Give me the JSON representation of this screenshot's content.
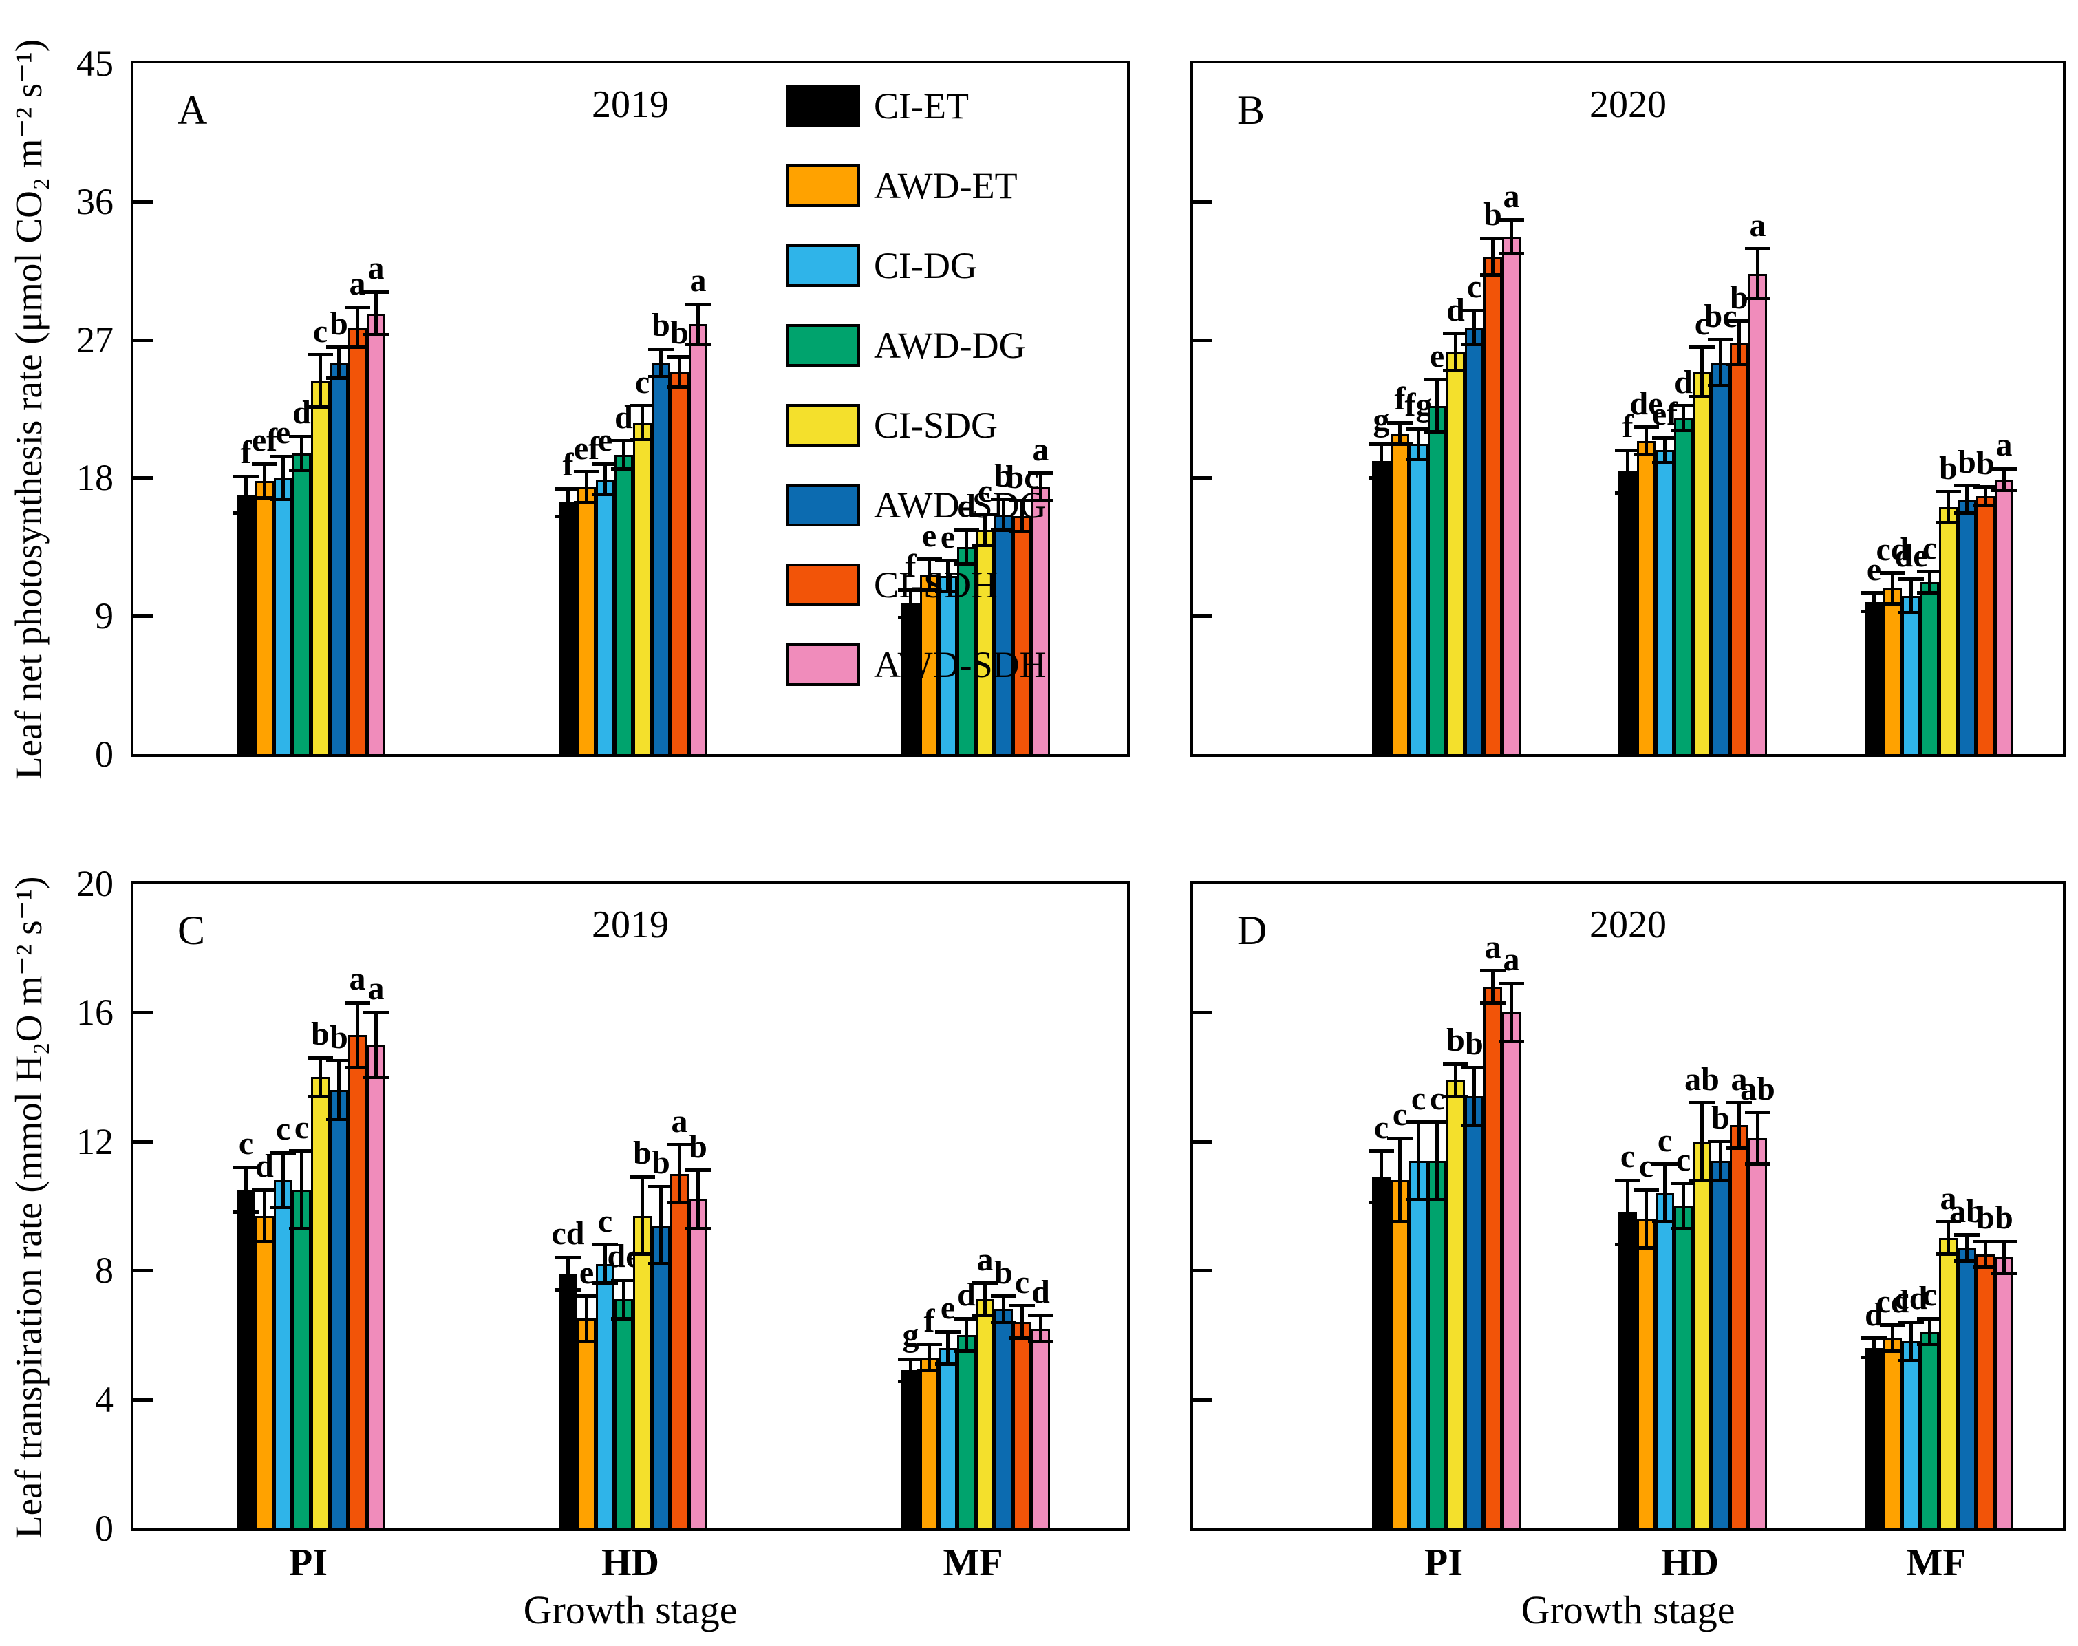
{
  "figure": {
    "xlabel": "Growth stage",
    "group_labels": [
      "PI",
      "HD",
      "MF"
    ],
    "treatments": [
      {
        "name": "CI-ET",
        "color": "#000000"
      },
      {
        "name": "AWD-ET",
        "color": "#FFA200"
      },
      {
        "name": "CI-DG",
        "color": "#2FB4E9"
      },
      {
        "name": "AWD-DG",
        "color": "#00A36D"
      },
      {
        "name": "CI-SDG",
        "color": "#F4E02C"
      },
      {
        "name": "AWD-SDG",
        "color": "#0C6BB0"
      },
      {
        "name": "CI-SDH",
        "color": "#F25408"
      },
      {
        "name": "AWD-SDH",
        "color": "#F08CBB"
      }
    ],
    "chart_data": {
      "type": "bar",
      "note": "4 panels; grouped bars with error bars and significance letters",
      "panels": [
        {
          "id": "A",
          "title": "2019",
          "ylabel": "Leaf net photosynthesis rate (μmol CO₂ m⁻² s⁻¹)",
          "ylim": [
            0,
            45
          ],
          "yticks": [
            0,
            9,
            18,
            27,
            36,
            45
          ],
          "categories": [
            "PI",
            "HD",
            "MF"
          ],
          "series": [
            {
              "name": "CI-ET",
              "values": [
                16.9,
                16.4,
                9.8
              ],
              "errors": [
                1.2,
                0.9,
                0.9
              ],
              "letters": [
                "f",
                "f",
                "f"
              ]
            },
            {
              "name": "AWD-ET",
              "values": [
                17.8,
                17.4,
                11.7
              ],
              "errors": [
                1.1,
                1.0,
                1.0
              ],
              "letters": [
                "ef",
                "ef",
                "e"
              ]
            },
            {
              "name": "CI-DG",
              "values": [
                18.0,
                17.9,
                11.6
              ],
              "errors": [
                1.4,
                1.0,
                1.0
              ],
              "letters": [
                "e",
                "e",
                "e"
              ]
            },
            {
              "name": "AWD-DG",
              "values": [
                19.6,
                19.5,
                13.5
              ],
              "errors": [
                1.1,
                0.9,
                1.1
              ],
              "letters": [
                "d",
                "d",
                "d"
              ]
            },
            {
              "name": "CI-SDG",
              "values": [
                24.3,
                21.6,
                14.6
              ],
              "errors": [
                1.7,
                1.1,
                1.0
              ],
              "letters": [
                "c",
                "c",
                "c"
              ]
            },
            {
              "name": "AWD-SDG",
              "values": [
                25.5,
                25.5,
                15.6
              ],
              "errors": [
                1.0,
                0.9,
                1.0
              ],
              "letters": [
                "b",
                "b",
                "b"
              ]
            },
            {
              "name": "CI-SDH",
              "values": [
                27.8,
                24.9,
                15.5
              ],
              "errors": [
                1.3,
                1.0,
                1.0
              ],
              "letters": [
                "a",
                "b",
                "bc"
              ]
            },
            {
              "name": "AWD-SDH",
              "values": [
                28.7,
                28.0,
                17.4
              ],
              "errors": [
                1.4,
                1.3,
                0.9
              ],
              "letters": [
                "a",
                "a",
                "a"
              ]
            }
          ]
        },
        {
          "id": "B",
          "title": "2020",
          "ylabel": "",
          "ylim": [
            0,
            45
          ],
          "yticks": [
            0,
            9,
            18,
            27,
            36,
            45
          ],
          "categories": [
            "PI",
            "HD",
            "MF"
          ],
          "series": [
            {
              "name": "CI-ET",
              "values": [
                19.1,
                18.4,
                9.9
              ],
              "errors": [
                1.1,
                1.4,
                0.6
              ],
              "letters": [
                "g",
                "f",
                "e"
              ]
            },
            {
              "name": "AWD-ET",
              "values": [
                20.9,
                20.4,
                10.8
              ],
              "errors": [
                0.7,
                0.9,
                1.0
              ],
              "letters": [
                "f",
                "de",
                "cd"
              ]
            },
            {
              "name": "CI-DG",
              "values": [
                20.2,
                19.8,
                10.3
              ],
              "errors": [
                1.0,
                0.8,
                1.1
              ],
              "letters": [
                "fg",
                "ef",
                "de"
              ]
            },
            {
              "name": "AWD-DG",
              "values": [
                22.7,
                21.9,
                11.2
              ],
              "errors": [
                1.7,
                0.8,
                0.7
              ],
              "letters": [
                "e",
                "d",
                "c"
              ]
            },
            {
              "name": "CI-SDG",
              "values": [
                26.2,
                24.9,
                16.1
              ],
              "errors": [
                1.2,
                1.6,
                1.0
              ],
              "letters": [
                "d",
                "c",
                "b"
              ]
            },
            {
              "name": "AWD-SDG",
              "values": [
                27.8,
                25.5,
                16.6
              ],
              "errors": [
                1.1,
                1.5,
                0.9
              ],
              "letters": [
                "c",
                "bc",
                "b"
              ]
            },
            {
              "name": "CI-SDH",
              "values": [
                32.4,
                26.8,
                16.8
              ],
              "errors": [
                1.2,
                1.4,
                0.6
              ],
              "letters": [
                "b",
                "b",
                "b"
              ]
            },
            {
              "name": "AWD-SDH",
              "values": [
                33.7,
                31.3,
                17.9
              ],
              "errors": [
                1.1,
                1.6,
                0.7
              ],
              "letters": [
                "a",
                "a",
                "a"
              ]
            }
          ]
        },
        {
          "id": "C",
          "title": "2019",
          "ylabel": "Leaf transpiration rate (mmol H₂O m⁻² s⁻¹)",
          "ylim": [
            0,
            20
          ],
          "yticks": [
            0,
            4,
            8,
            12,
            16,
            20
          ],
          "categories": [
            "PI",
            "HD",
            "MF"
          ],
          "series": [
            {
              "name": "CI-ET",
              "values": [
                10.5,
                7.9,
                4.9
              ],
              "errors": [
                0.7,
                0.5,
                0.35
              ],
              "letters": [
                "c",
                "cd",
                "g"
              ]
            },
            {
              "name": "AWD-ET",
              "values": [
                9.7,
                6.5,
                5.3
              ],
              "errors": [
                0.8,
                0.7,
                0.4
              ],
              "letters": [
                "d",
                "e",
                "f"
              ]
            },
            {
              "name": "CI-DG",
              "values": [
                10.8,
                8.2,
                5.6
              ],
              "errors": [
                0.85,
                0.6,
                0.5
              ],
              "letters": [
                "c",
                "c",
                "e"
              ]
            },
            {
              "name": "AWD-DG",
              "values": [
                10.5,
                7.1,
                6.0
              ],
              "errors": [
                1.2,
                0.6,
                0.5
              ],
              "letters": [
                "c",
                "de",
                "d"
              ]
            },
            {
              "name": "CI-SDG",
              "values": [
                14.0,
                9.7,
                7.1
              ],
              "errors": [
                0.6,
                1.2,
                0.5
              ],
              "letters": [
                "b",
                "b",
                "a"
              ]
            },
            {
              "name": "AWD-SDG",
              "values": [
                13.6,
                9.4,
                6.8
              ],
              "errors": [
                0.9,
                1.2,
                0.4
              ],
              "letters": [
                "b",
                "b",
                "b"
              ]
            },
            {
              "name": "CI-SDH",
              "values": [
                15.3,
                11.0,
                6.4
              ],
              "errors": [
                1.0,
                0.9,
                0.5
              ],
              "letters": [
                "a",
                "a",
                "c"
              ]
            },
            {
              "name": "AWD-SDH",
              "values": [
                15.0,
                10.2,
                6.2
              ],
              "errors": [
                1.0,
                0.9,
                0.4
              ],
              "letters": [
                "a",
                "b",
                "d"
              ]
            }
          ]
        },
        {
          "id": "D",
          "title": "2020",
          "ylabel": "",
          "ylim": [
            0,
            20
          ],
          "yticks": [
            0,
            4,
            8,
            12,
            16,
            20
          ],
          "categories": [
            "PI",
            "HD",
            "MF"
          ],
          "series": [
            {
              "name": "CI-ET",
              "values": [
                10.9,
                9.8,
                5.6
              ],
              "errors": [
                0.8,
                1.0,
                0.3
              ],
              "letters": [
                "c",
                "c",
                "d"
              ]
            },
            {
              "name": "AWD-ET",
              "values": [
                10.8,
                9.6,
                5.9
              ],
              "errors": [
                1.3,
                0.9,
                0.4
              ],
              "letters": [
                "c",
                "c",
                "cd"
              ]
            },
            {
              "name": "CI-DG",
              "values": [
                11.4,
                10.4,
                5.8
              ],
              "errors": [
                1.2,
                0.9,
                0.6
              ],
              "letters": [
                "c",
                "c",
                "cd"
              ]
            },
            {
              "name": "AWD-DG",
              "values": [
                11.4,
                10.0,
                6.1
              ],
              "errors": [
                1.2,
                0.7,
                0.4
              ],
              "letters": [
                "c",
                "c",
                "c"
              ]
            },
            {
              "name": "CI-SDG",
              "values": [
                13.9,
                12.0,
                9.0
              ],
              "errors": [
                0.5,
                1.2,
                0.5
              ],
              "letters": [
                "b",
                "ab",
                "a"
              ]
            },
            {
              "name": "AWD-SDG",
              "values": [
                13.4,
                11.4,
                8.7
              ],
              "errors": [
                0.9,
                0.6,
                0.4
              ],
              "letters": [
                "b",
                "b",
                "ab"
              ]
            },
            {
              "name": "CI-SDH",
              "values": [
                16.8,
                12.5,
                8.5
              ],
              "errors": [
                0.5,
                0.7,
                0.4
              ],
              "letters": [
                "a",
                "a",
                "b"
              ]
            },
            {
              "name": "AWD-SDH",
              "values": [
                16.0,
                12.1,
                8.4
              ],
              "errors": [
                0.9,
                0.8,
                0.5
              ],
              "letters": [
                "a",
                "ab",
                "b"
              ]
            }
          ]
        }
      ]
    }
  }
}
